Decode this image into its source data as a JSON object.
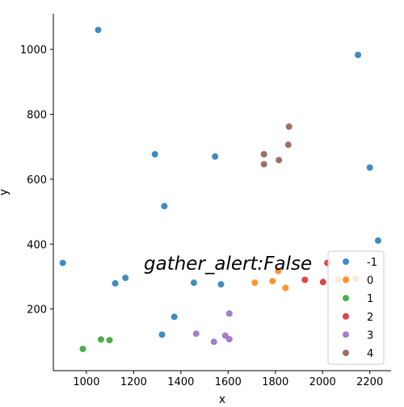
{
  "chart_data": {
    "type": "scatter",
    "title": "",
    "xlabel": "x",
    "ylabel": "y",
    "annotation": "gather_alert:False",
    "xlim": [
      860,
      2290
    ],
    "ylim": [
      10,
      1110
    ],
    "xticks": [
      1000,
      1200,
      1400,
      1600,
      1800,
      2000,
      2200
    ],
    "yticks": [
      200,
      400,
      600,
      800,
      1000
    ],
    "grid": false,
    "legend_position": "lower-right",
    "series": [
      {
        "name": "-1",
        "color": "#1f77b4",
        "points": [
          [
            1050,
            1060
          ],
          [
            2150,
            983
          ],
          [
            1290,
            677
          ],
          [
            1545,
            670
          ],
          [
            2200,
            636
          ],
          [
            1330,
            517
          ],
          [
            2235,
            411
          ],
          [
            900,
            342
          ],
          [
            1165,
            296
          ],
          [
            1122,
            279
          ],
          [
            1455,
            281
          ],
          [
            1570,
            276
          ],
          [
            1372,
            176
          ],
          [
            1320,
            121
          ]
        ]
      },
      {
        "name": "0",
        "color": "#ff7f0e",
        "points": [
          [
            1812,
            317
          ],
          [
            1788,
            286
          ],
          [
            1713,
            281
          ],
          [
            1843,
            265
          ],
          [
            2065,
            290
          ],
          [
            2100,
            296
          ],
          [
            2140,
            293
          ]
        ]
      },
      {
        "name": "1",
        "color": "#2ca02c",
        "points": [
          [
            1062,
            106
          ],
          [
            1098,
            104
          ],
          [
            985,
            77
          ]
        ]
      },
      {
        "name": "2",
        "color": "#d62728",
        "points": [
          [
            2020,
            342
          ],
          [
            1925,
            290
          ],
          [
            2002,
            283
          ]
        ]
      },
      {
        "name": "3",
        "color": "#9467bd",
        "points": [
          [
            1605,
            186
          ],
          [
            1465,
            124
          ],
          [
            1588,
            118
          ],
          [
            1605,
            107
          ],
          [
            1540,
            99
          ]
        ]
      },
      {
        "name": "4",
        "color": "#8c564b",
        "points": [
          [
            1858,
            762
          ],
          [
            1855,
            706
          ],
          [
            1752,
            677
          ],
          [
            1815,
            659
          ],
          [
            1752,
            646
          ]
        ]
      }
    ]
  }
}
